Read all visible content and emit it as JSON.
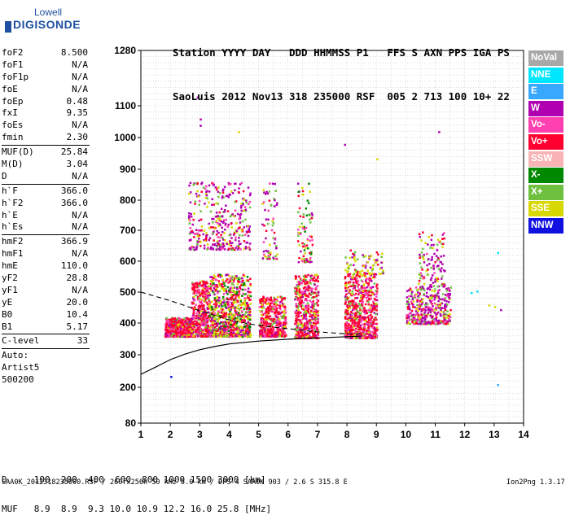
{
  "logo": {
    "line1": "Lowell",
    "line2": "DIGISONDE"
  },
  "header": {
    "labels": "Station YYYY DAY   DDD HHMMSS P1   FFS S AXN PPS IGA PS",
    "values": "SaoLuis 2012 Nov13 318 235000 RSF  005 2 713 100 10+ 22"
  },
  "params": [
    [
      {
        "k": "foF2",
        "v": "8.500"
      },
      {
        "k": "foF1",
        "v": "N/A"
      },
      {
        "k": "foF1p",
        "v": "N/A"
      },
      {
        "k": "foE",
        "v": "N/A"
      },
      {
        "k": "foEp",
        "v": "0.48"
      },
      {
        "k": "fxI",
        "v": "9.35"
      },
      {
        "k": "foEs",
        "v": "N/A"
      },
      {
        "k": "fmin",
        "v": "2.30"
      }
    ],
    [
      {
        "k": "MUF(D)",
        "v": "25.84"
      },
      {
        "k": "M(D)",
        "v": "3.04"
      },
      {
        "k": "D",
        "v": "N/A"
      }
    ],
    [
      {
        "k": "h`F",
        "v": "366.0"
      },
      {
        "k": "h`F2",
        "v": "366.0"
      },
      {
        "k": "h`E",
        "v": "N/A"
      },
      {
        "k": "h`Es",
        "v": "N/A"
      }
    ],
    [
      {
        "k": "hmF2",
        "v": "366.9"
      },
      {
        "k": "hmF1",
        "v": "N/A"
      },
      {
        "k": "hmE",
        "v": "110.0"
      },
      {
        "k": "yF2",
        "v": "28.8"
      },
      {
        "k": "yF1",
        "v": "N/A"
      },
      {
        "k": "yE",
        "v": "20.0"
      },
      {
        "k": "B0",
        "v": "10.4"
      },
      {
        "k": "B1",
        "v": "5.17"
      }
    ],
    [
      {
        "k": "C-level",
        "v": "33"
      }
    ],
    [
      {
        "k": "Auto:",
        "v": ""
      },
      {
        "k": "Artist5",
        "v": ""
      },
      {
        "k": "500200",
        "v": ""
      }
    ]
  ],
  "legend": [
    {
      "label": "NoVal",
      "color": "#a8a8a8"
    },
    {
      "label": "NNE",
      "color": "#00e6ff"
    },
    {
      "label": "E",
      "color": "#38a8ff"
    },
    {
      "label": "W",
      "color": "#b000b0"
    },
    {
      "label": "Vo-",
      "color": "#ff40b0"
    },
    {
      "label": "Vo+",
      "color": "#ff0030"
    },
    {
      "label": "SSW",
      "color": "#f8b4b4"
    },
    {
      "label": "X-",
      "color": "#008800"
    },
    {
      "label": "X+",
      "color": "#70c040"
    },
    {
      "label": "SSE",
      "color": "#d8d800"
    },
    {
      "label": "NNW",
      "color": "#1010e0"
    }
  ],
  "footer": {
    "line1": "D     100  200  400  600  800 1000 1500 3000 [km]",
    "line2": "MUF   8.9  8.9  9.3 10.0 10.9 12.2 16.0 25.8 [MHz]",
    "file": "SAA0K_2012318235000.RSF / 260fx256h 50 kHz 5.0 km / DPS-4 SAA0K 903 / 2.6 S 315.8 E",
    "version": "Ion2Png 1.3.17"
  },
  "chart_data": {
    "type": "scatter",
    "title": "",
    "xlabel": "",
    "ylabel": "",
    "xlim": [
      1,
      14
    ],
    "ylim": [
      80,
      1280
    ],
    "x_ticks": [
      1,
      2,
      3,
      4,
      5,
      6,
      7,
      8,
      9,
      10,
      11,
      12,
      13,
      14
    ],
    "y_ticks": [
      80,
      200,
      300,
      400,
      500,
      600,
      700,
      800,
      900,
      1000,
      1100,
      1280
    ],
    "y_scale": "custom-ionogram",
    "grid": true,
    "clusters": [
      {
        "f": [
          1.8,
          2.7
        ],
        "h": [
          360,
          420
        ],
        "n": 600,
        "mix": "red"
      },
      {
        "f": [
          2.7,
          3.3
        ],
        "h": [
          360,
          540
        ],
        "n": 420,
        "mix": "red"
      },
      {
        "f": [
          3.3,
          4.0
        ],
        "h": [
          360,
          560
        ],
        "n": 420,
        "mix": "mixed"
      },
      {
        "f": [
          4.0,
          4.7
        ],
        "h": [
          360,
          560
        ],
        "n": 420,
        "mix": "mixed"
      },
      {
        "f": [
          5.0,
          5.9
        ],
        "h": [
          360,
          490
        ],
        "n": 450,
        "mix": "red"
      },
      {
        "f": [
          6.2,
          7.0
        ],
        "h": [
          355,
          560
        ],
        "n": 480,
        "mix": "red"
      },
      {
        "f": [
          7.9,
          9.0
        ],
        "h": [
          355,
          560
        ],
        "n": 650,
        "mix": "red"
      },
      {
        "f": [
          10.0,
          11.5
        ],
        "h": [
          400,
          520
        ],
        "n": 380,
        "mix": "magenta"
      },
      {
        "f": [
          10.4,
          11.3
        ],
        "h": [
          520,
          700
        ],
        "n": 120,
        "mix": "magenta"
      },
      {
        "f": [
          2.6,
          4.7
        ],
        "h": [
          640,
          860
        ],
        "n": 360,
        "mix": "magenta"
      },
      {
        "f": [
          5.1,
          5.6
        ],
        "h": [
          610,
          860
        ],
        "n": 70,
        "mix": "magenta"
      },
      {
        "f": [
          6.3,
          6.8
        ],
        "h": [
          600,
          860
        ],
        "n": 90,
        "mix": "mixed"
      },
      {
        "f": [
          7.9,
          9.2
        ],
        "h": [
          560,
          640
        ],
        "n": 90,
        "mix": "yellow"
      }
    ],
    "isolated_points": [
      {
        "f": 2.0,
        "h": 235,
        "c": "#1010e0"
      },
      {
        "f": 2.9,
        "h": 1130,
        "c": "#b000b0"
      },
      {
        "f": 3.0,
        "h": 1060,
        "c": "#b000b0"
      },
      {
        "f": 3.0,
        "h": 1040,
        "c": "#b000b0"
      },
      {
        "f": 4.3,
        "h": 1020,
        "c": "#d8d800"
      },
      {
        "f": 7.9,
        "h": 980,
        "c": "#b000b0"
      },
      {
        "f": 9.0,
        "h": 935,
        "c": "#d8d800"
      },
      {
        "f": 11.1,
        "h": 1020,
        "c": "#b000b0"
      },
      {
        "f": 12.2,
        "h": 500,
        "c": "#00e6ff"
      },
      {
        "f": 12.4,
        "h": 505,
        "c": "#00e6ff"
      },
      {
        "f": 12.8,
        "h": 460,
        "c": "#d8d800"
      },
      {
        "f": 13.0,
        "h": 455,
        "c": "#d8d800"
      },
      {
        "f": 13.1,
        "h": 630,
        "c": "#00e6ff"
      },
      {
        "f": 13.1,
        "h": 210,
        "c": "#38a8ff"
      },
      {
        "f": 13.2,
        "h": 445,
        "c": "#b000b0"
      }
    ],
    "profile_solid": [
      [
        1.0,
        240
      ],
      [
        1.5,
        262
      ],
      [
        2.0,
        285
      ],
      [
        2.5,
        302
      ],
      [
        3.0,
        316
      ],
      [
        3.5,
        326
      ],
      [
        4.0,
        334
      ],
      [
        5.0,
        343
      ],
      [
        6.0,
        349
      ],
      [
        7.0,
        353
      ],
      [
        8.0,
        357
      ],
      [
        8.5,
        359
      ]
    ],
    "profile_dashed": [
      [
        1.0,
        500
      ],
      [
        2.0,
        472
      ],
      [
        3.0,
        440
      ],
      [
        4.0,
        410
      ],
      [
        5.0,
        392
      ],
      [
        6.0,
        382
      ],
      [
        7.0,
        372
      ],
      [
        8.0,
        366
      ],
      [
        8.5,
        366
      ]
    ]
  }
}
